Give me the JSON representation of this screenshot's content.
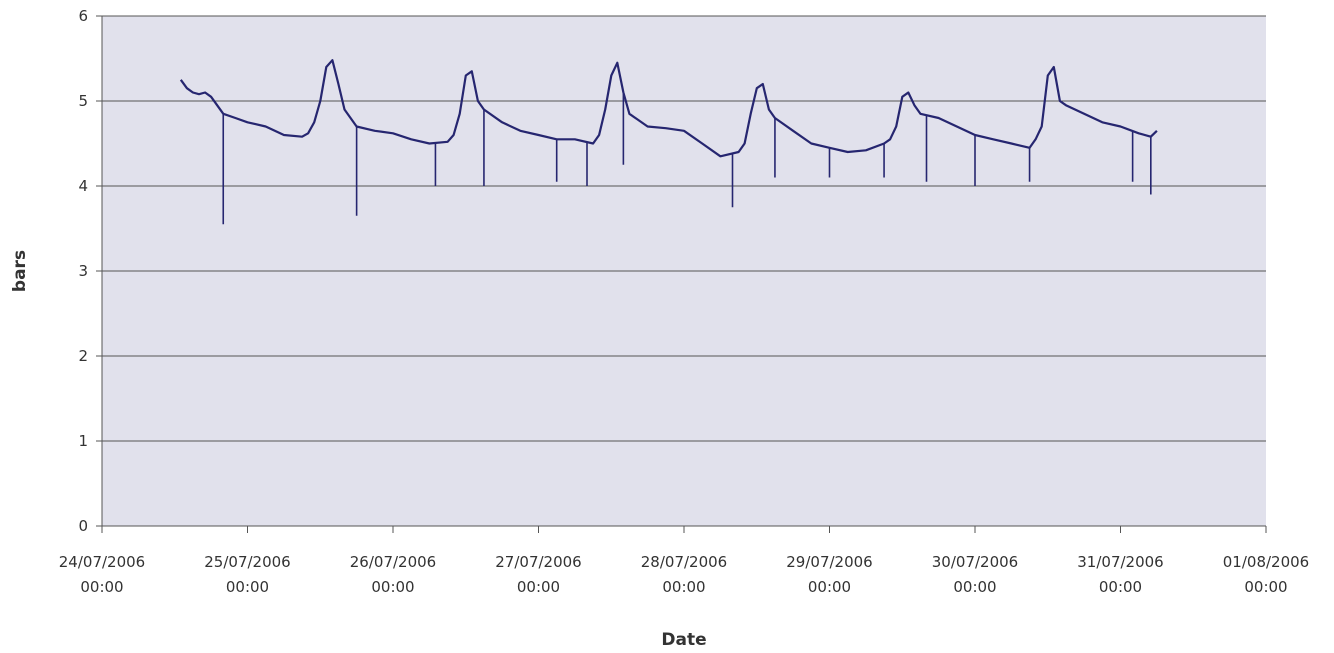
{
  "colors": {
    "plot_background": "#e1e1ec",
    "grid": "#555555",
    "axis": "#555555",
    "series": "#262670"
  },
  "chart_data": {
    "type": "line",
    "title": "",
    "xlabel": "Date",
    "ylabel": "bars",
    "xlim": [
      "24/07/2006 00:00",
      "01/08/2006 00:00"
    ],
    "ylim": [
      0,
      6
    ],
    "grid": true,
    "legend": "none",
    "x_ticks": [
      {
        "date": "24/07/2006",
        "time": "00:00"
      },
      {
        "date": "25/07/2006",
        "time": "00:00"
      },
      {
        "date": "26/07/2006",
        "time": "00:00"
      },
      {
        "date": "27/07/2006",
        "time": "00:00"
      },
      {
        "date": "28/07/2006",
        "time": "00:00"
      },
      {
        "date": "29/07/2006",
        "time": "00:00"
      },
      {
        "date": "30/07/2006",
        "time": "00:00"
      },
      {
        "date": "31/07/2006",
        "time": "00:00"
      },
      {
        "date": "01/08/2006",
        "time": "00:00"
      }
    ],
    "y_ticks": [
      0,
      1,
      2,
      3,
      4,
      5,
      6
    ],
    "series": [
      {
        "x": [
          "24/07/2006 13:00",
          "24/07/2006 14:00",
          "24/07/2006 15:00",
          "24/07/2006 16:00",
          "24/07/2006 17:00",
          "24/07/2006 18:00",
          "24/07/2006 20:00",
          "24/07/2006 22:00",
          "25/07/2006 00:00",
          "25/07/2006 03:00",
          "25/07/2006 06:00",
          "25/07/2006 09:00",
          "25/07/2006 10:00",
          "25/07/2006 11:00",
          "25/07/2006 12:00",
          "25/07/2006 13:00",
          "25/07/2006 14:00",
          "25/07/2006 15:00",
          "25/07/2006 16:00",
          "25/07/2006 18:00",
          "25/07/2006 21:00",
          "26/07/2006 00:00",
          "26/07/2006 03:00",
          "26/07/2006 06:00",
          "26/07/2006 09:00",
          "26/07/2006 10:00",
          "26/07/2006 11:00",
          "26/07/2006 12:00",
          "26/07/2006 13:00",
          "26/07/2006 14:00",
          "26/07/2006 15:00",
          "26/07/2006 18:00",
          "26/07/2006 21:00",
          "27/07/2006 00:00",
          "27/07/2006 03:00",
          "27/07/2006 06:00",
          "27/07/2006 09:00",
          "27/07/2006 10:00",
          "27/07/2006 11:00",
          "27/07/2006 12:00",
          "27/07/2006 13:00",
          "27/07/2006 14:00",
          "27/07/2006 15:00",
          "27/07/2006 18:00",
          "27/07/2006 21:00",
          "28/07/2006 00:00",
          "28/07/2006 03:00",
          "28/07/2006 06:00",
          "28/07/2006 09:00",
          "28/07/2006 10:00",
          "28/07/2006 11:00",
          "28/07/2006 12:00",
          "28/07/2006 13:00",
          "28/07/2006 14:00",
          "28/07/2006 15:00",
          "28/07/2006 18:00",
          "28/07/2006 21:00",
          "29/07/2006 00:00",
          "29/07/2006 03:00",
          "29/07/2006 06:00",
          "29/07/2006 09:00",
          "29/07/2006 10:00",
          "29/07/2006 11:00",
          "29/07/2006 12:00",
          "29/07/2006 13:00",
          "29/07/2006 14:00",
          "29/07/2006 15:00",
          "29/07/2006 18:00",
          "29/07/2006 21:00",
          "30/07/2006 00:00",
          "30/07/2006 03:00",
          "30/07/2006 06:00",
          "30/07/2006 09:00",
          "30/07/2006 10:00",
          "30/07/2006 11:00",
          "30/07/2006 12:00",
          "30/07/2006 13:00",
          "30/07/2006 14:00",
          "30/07/2006 15:00",
          "30/07/2006 18:00",
          "30/07/2006 21:00",
          "31/07/2006 00:00",
          "31/07/2006 03:00",
          "31/07/2006 05:00",
          "31/07/2006 06:00"
        ],
        "y": [
          5.25,
          5.15,
          5.1,
          5.08,
          5.1,
          5.05,
          4.85,
          4.8,
          4.75,
          4.7,
          4.6,
          4.58,
          4.62,
          4.75,
          5.0,
          5.4,
          5.48,
          5.2,
          4.9,
          4.7,
          4.65,
          4.62,
          4.55,
          4.5,
          4.52,
          4.6,
          4.85,
          5.3,
          5.35,
          5.0,
          4.9,
          4.75,
          4.65,
          4.6,
          4.55,
          4.55,
          4.5,
          4.6,
          4.9,
          5.3,
          5.45,
          5.1,
          4.85,
          4.7,
          4.68,
          4.65,
          4.5,
          4.35,
          4.4,
          4.5,
          4.85,
          5.15,
          5.2,
          4.9,
          4.8,
          4.65,
          4.5,
          4.45,
          4.4,
          4.42,
          4.5,
          4.55,
          4.7,
          5.05,
          5.1,
          4.95,
          4.85,
          4.8,
          4.7,
          4.6,
          4.55,
          4.5,
          4.45,
          4.55,
          4.7,
          5.3,
          5.4,
          5.0,
          4.95,
          4.85,
          4.75,
          4.7,
          4.62,
          4.58,
          4.65
        ]
      }
    ],
    "spikes": [
      {
        "x": "24/07/2006 20:00",
        "y": 3.55
      },
      {
        "x": "25/07/2006 18:00",
        "y": 3.65
      },
      {
        "x": "26/07/2006 07:00",
        "y": 4.0
      },
      {
        "x": "26/07/2006 15:00",
        "y": 4.0
      },
      {
        "x": "27/07/2006 03:00",
        "y": 4.05
      },
      {
        "x": "27/07/2006 08:00",
        "y": 4.0
      },
      {
        "x": "27/07/2006 14:00",
        "y": 4.25
      },
      {
        "x": "28/07/2006 08:00",
        "y": 3.75
      },
      {
        "x": "28/07/2006 15:00",
        "y": 4.1
      },
      {
        "x": "29/07/2006 00:00",
        "y": 4.1
      },
      {
        "x": "29/07/2006 09:00",
        "y": 4.1
      },
      {
        "x": "29/07/2006 16:00",
        "y": 4.05
      },
      {
        "x": "30/07/2006 00:00",
        "y": 4.0
      },
      {
        "x": "30/07/2006 09:00",
        "y": 4.05
      },
      {
        "x": "31/07/2006 02:00",
        "y": 4.05
      },
      {
        "x": "31/07/2006 05:00",
        "y": 3.9
      }
    ]
  }
}
